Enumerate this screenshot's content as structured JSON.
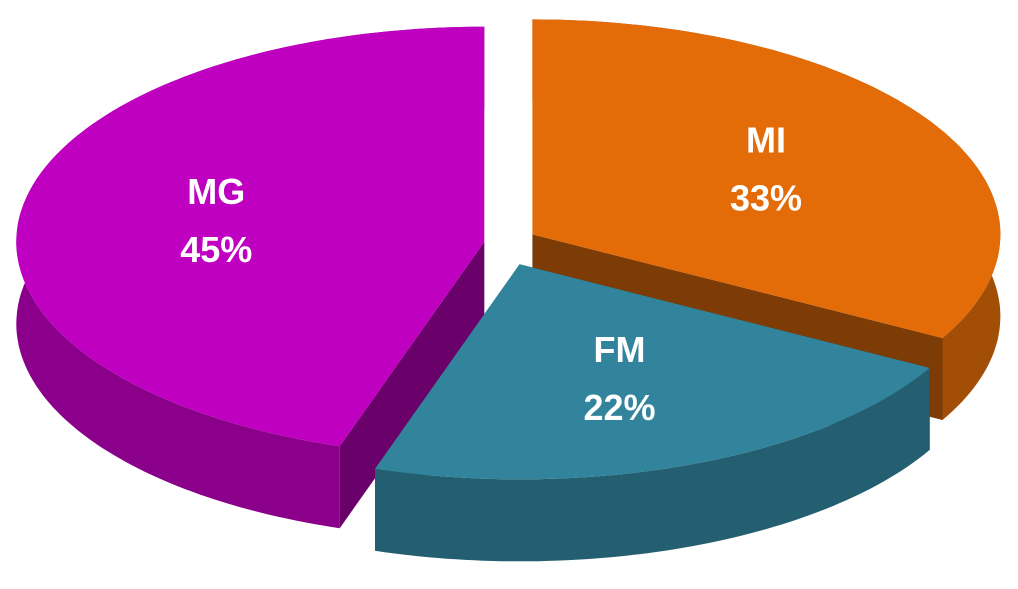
{
  "chart_data": {
    "type": "pie",
    "categories": [
      "MI",
      "FM",
      "MG"
    ],
    "values": [
      33,
      22,
      45
    ],
    "value_labels": [
      "33%",
      "22%",
      "45%"
    ],
    "colors": [
      "#e36c09",
      "#31849b",
      "#c000c0"
    ]
  }
}
